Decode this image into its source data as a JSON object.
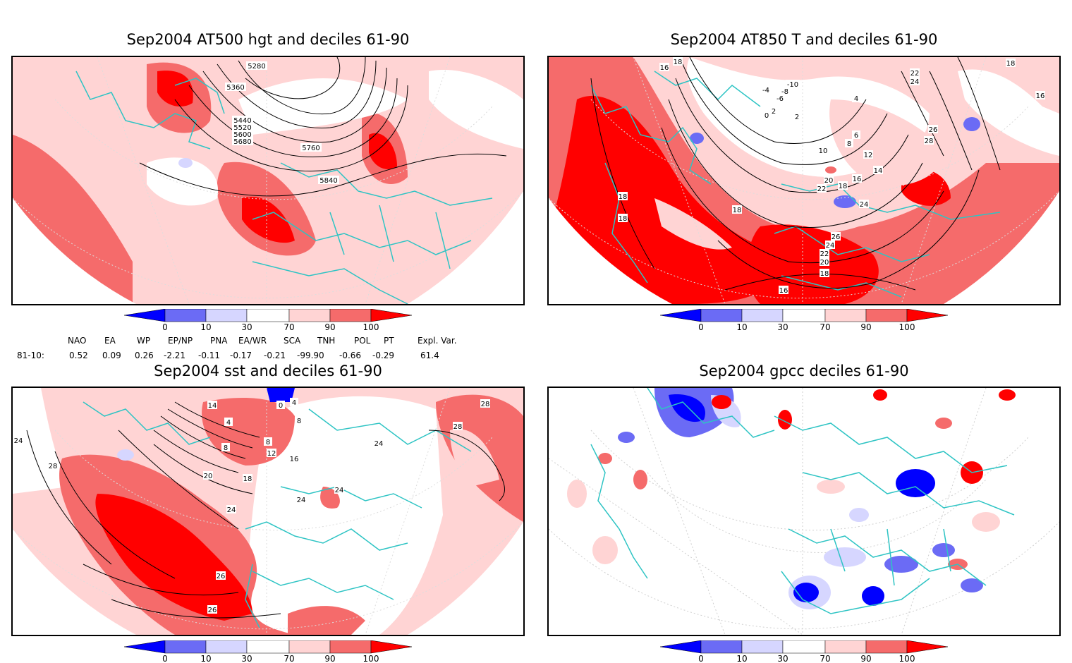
{
  "colors": {
    "deep_blue": "#0000ff",
    "mid_blue": "#6b6bf5",
    "light_blue": "#d6d6ff",
    "white": "#ffffff",
    "light_red": "#ffd4d4",
    "mid_red": "#f56b6b",
    "deep_red": "#ff0000",
    "coast": "#2ec4c4"
  },
  "panels": [
    {
      "title": "Sep2004 AT500 hgt and deciles 61-90",
      "contour_labels": [
        "5280",
        "5360",
        "5440",
        "5520",
        "5600",
        "5680",
        "5760",
        "5840"
      ]
    },
    {
      "title": "Sep2004 AT850 T and deciles 61-90",
      "contour_labels": [
        "18",
        "16",
        "-10",
        "-8",
        "-6",
        "-4",
        "0",
        "2",
        "2",
        "4",
        "22",
        "24",
        "18",
        "16",
        "26",
        "28",
        "6",
        "8",
        "10",
        "12",
        "14",
        "16",
        "18",
        "20",
        "22",
        "24",
        "26",
        "24",
        "22",
        "20",
        "18",
        "18",
        "18",
        "16",
        "18"
      ]
    },
    {
      "title": "Sep2004 sst and deciles 61-90",
      "contour_labels": [
        "28",
        "24",
        "28",
        "14",
        "4",
        "0",
        "4",
        "8",
        "8",
        "8",
        "12",
        "16",
        "20",
        "18",
        "24",
        "24",
        "24",
        "26",
        "26",
        "28",
        "24"
      ]
    },
    {
      "title": "Sep2004 gpcc deciles 61-90",
      "contour_labels": []
    }
  ],
  "colorbar": {
    "ticks": [
      "0",
      "10",
      "30",
      "70",
      "90",
      "100"
    ]
  },
  "indices": {
    "row_label": "81-10:",
    "headers": [
      "NAO",
      "EA",
      "WP",
      "EP/NP",
      "PNA",
      "EA/WR",
      "SCA",
      "TNH",
      "POL",
      "PT",
      "Expl. Var."
    ],
    "values": [
      "0.52",
      "0.09",
      "0.26",
      "-2.21",
      "-0.11",
      "-0.17",
      "-0.21",
      "-99.90",
      "-0.66",
      "-0.29",
      "61.4"
    ]
  }
}
